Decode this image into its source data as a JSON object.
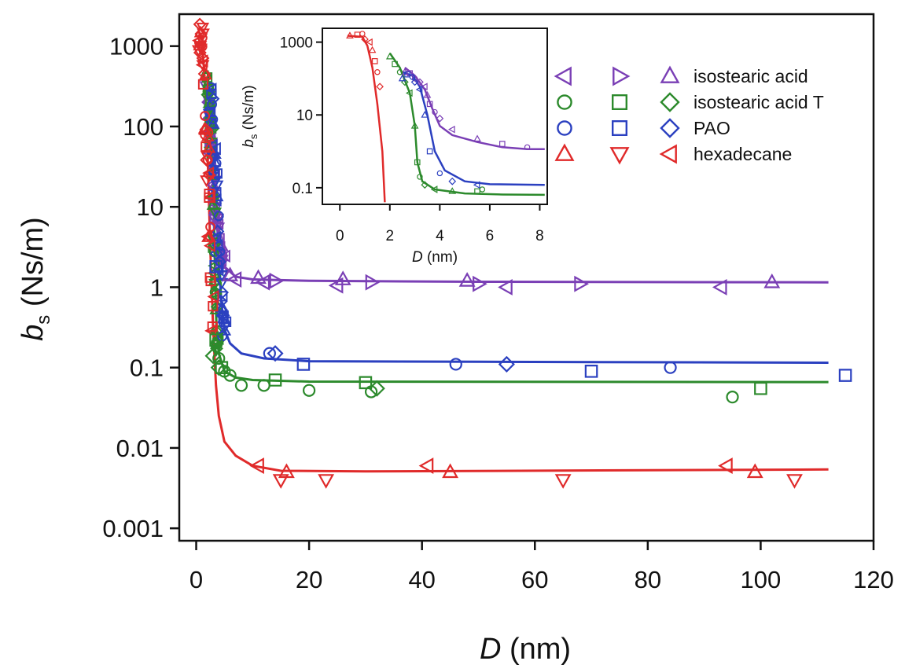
{
  "chart_data": [
    {
      "id": "main",
      "type": "scatter",
      "title": "",
      "xlabel_var": "D",
      "xlabel_unit": "(nm)",
      "ylabel_var": "b",
      "ylabel_sub": "s",
      "ylabel_unit": "(Ns/m)",
      "y_scale": "log",
      "xlim": [
        -3,
        120
      ],
      "ylim": [
        0.0007,
        2500
      ],
      "x_ticks": [
        0,
        20,
        40,
        60,
        80,
        100,
        120
      ],
      "x_tick_labels": [
        "0",
        "20",
        "40",
        "60",
        "80",
        "100",
        "120"
      ],
      "y_ticks": [
        0.001,
        0.01,
        0.1,
        1,
        10,
        100,
        1000
      ],
      "y_tick_labels": [
        "0.001",
        "0.01",
        "0.1",
        "1",
        "10",
        "100",
        "1000"
      ],
      "grid": false,
      "legend_position": "top-right",
      "series": [
        {
          "name": "isostearic acid",
          "color": "#7a3fb5",
          "markers": [
            {
              "symbol": "tri-left",
              "points": [
                [
                  7,
                  1.25
                ],
                [
                  12,
                  1.15
                ],
                [
                  25,
                  1.05
                ],
                [
                  55,
                  1.0
                ],
                [
                  93,
                  1.0
                ]
              ]
            },
            {
              "symbol": "tri-right",
              "points": [
                [
                  14,
                  1.2
                ],
                [
                  31,
                  1.15
                ],
                [
                  50,
                  1.1
                ],
                [
                  68,
                  1.1
                ]
              ]
            },
            {
              "symbol": "tri-up",
              "points": [
                [
                  6,
                  1.4
                ],
                [
                  11,
                  1.3
                ],
                [
                  26,
                  1.25
                ],
                [
                  48,
                  1.2
                ],
                [
                  102,
                  1.15
                ]
              ]
            }
          ],
          "fit": [
            [
              2.0,
              400
            ],
            [
              2.5,
              100
            ],
            [
              3.0,
              25
            ],
            [
              3.5,
              8
            ],
            [
              4.0,
              3.5
            ],
            [
              5,
              1.8
            ],
            [
              7,
              1.35
            ],
            [
              10,
              1.25
            ],
            [
              20,
              1.2
            ],
            [
              50,
              1.17
            ],
            [
              112,
              1.15
            ]
          ]
        },
        {
          "name": "isostearic acid T",
          "color": "#2c8a2c",
          "markers": [
            {
              "symbol": "circle",
              "points": [
                [
                  4,
                  0.13
                ],
                [
                  5,
                  0.09
                ],
                [
                  6,
                  0.08
                ],
                [
                  8,
                  0.06
                ],
                [
                  12,
                  0.06
                ],
                [
                  20,
                  0.052
                ],
                [
                  31,
                  0.05
                ],
                [
                  95,
                  0.043
                ]
              ]
            },
            {
              "symbol": "square",
              "points": [
                [
                  3.5,
                  0.22
                ],
                [
                  4.5,
                  0.1
                ],
                [
                  14,
                  0.07
                ],
                [
                  30,
                  0.065
                ],
                [
                  100,
                  0.055
                ]
              ]
            },
            {
              "symbol": "diamond",
              "points": [
                [
                  3,
                  0.14
                ],
                [
                  4,
                  0.1
                ],
                [
                  32,
                  0.055
                ]
              ]
            }
          ],
          "fit": [
            [
              2.0,
              500
            ],
            [
              2.5,
              150
            ],
            [
              3.0,
              20
            ],
            [
              3.3,
              2
            ],
            [
              3.6,
              0.3
            ],
            [
              4,
              0.15
            ],
            [
              5,
              0.09
            ],
            [
              7,
              0.075
            ],
            [
              10,
              0.07
            ],
            [
              20,
              0.067
            ],
            [
              112,
              0.066
            ]
          ]
        },
        {
          "name": "PAO",
          "color": "#2b40c0",
          "markers": [
            {
              "symbol": "circle",
              "points": [
                [
                  13,
                  0.15
                ],
                [
                  46,
                  0.11
                ],
                [
                  84,
                  0.1
                ]
              ]
            },
            {
              "symbol": "square",
              "points": [
                [
                  3.5,
                  1.8
                ],
                [
                  19,
                  0.11
                ],
                [
                  70,
                  0.09
                ],
                [
                  115,
                  0.08
                ]
              ]
            },
            {
              "symbol": "diamond",
              "points": [
                [
                  14,
                  0.15
                ],
                [
                  55,
                  0.11
                ]
              ]
            }
          ],
          "fit": [
            [
              2.5,
              300
            ],
            [
              3.0,
              100
            ],
            [
              3.5,
              20
            ],
            [
              4.0,
              2
            ],
            [
              4.5,
              0.6
            ],
            [
              5,
              0.3
            ],
            [
              6,
              0.2
            ],
            [
              8,
              0.15
            ],
            [
              12,
              0.13
            ],
            [
              20,
              0.12
            ],
            [
              50,
              0.118
            ],
            [
              112,
              0.115
            ]
          ]
        },
        {
          "name": "hexadecane",
          "color": "#e02a2a",
          "markers": [
            {
              "symbol": "tri-up",
              "points": [
                [
                  16,
                  0.005
                ],
                [
                  45,
                  0.005
                ],
                [
                  99,
                  0.005
                ]
              ]
            },
            {
              "symbol": "tri-down",
              "points": [
                [
                  15,
                  0.004
                ],
                [
                  23,
                  0.004
                ],
                [
                  65,
                  0.004
                ],
                [
                  106,
                  0.004
                ]
              ]
            },
            {
              "symbol": "tri-left",
              "points": [
                [
                  11,
                  0.006
                ],
                [
                  41,
                  0.006
                ],
                [
                  94,
                  0.006
                ]
              ]
            }
          ],
          "fit": [
            [
              0.5,
              1500
            ],
            [
              1.0,
              1200
            ],
            [
              1.5,
              400
            ],
            [
              2.0,
              50
            ],
            [
              2.5,
              3
            ],
            [
              3.0,
              0.3
            ],
            [
              3.5,
              0.06
            ],
            [
              4.0,
              0.025
            ],
            [
              5,
              0.012
            ],
            [
              7,
              0.008
            ],
            [
              10,
              0.006
            ],
            [
              15,
              0.0052
            ],
            [
              30,
              0.0051
            ],
            [
              112,
              0.0054
            ]
          ]
        }
      ],
      "legend_rows": [
        {
          "label": "isostearic acid",
          "color": "#7a3fb5",
          "symbols": [
            "tri-left",
            "tri-right",
            "tri-up"
          ]
        },
        {
          "label": "isostearic acid T",
          "color": "#2c8a2c",
          "symbols": [
            "circle",
            "square",
            "diamond"
          ]
        },
        {
          "label": "PAO",
          "color": "#2b40c0",
          "symbols": [
            "circle",
            "square",
            "diamond"
          ]
        },
        {
          "label": "hexadecane",
          "color": "#e02a2a",
          "symbols": [
            "tri-up",
            "tri-down",
            "tri-left"
          ]
        }
      ]
    },
    {
      "id": "inset",
      "type": "scatter",
      "title": "",
      "xlabel_var": "D",
      "xlabel_unit": "(nm)",
      "ylabel_var": "b",
      "ylabel_sub": "s",
      "ylabel_unit": "(Ns/m)",
      "y_scale": "log",
      "xlim": [
        -0.7,
        8.3
      ],
      "ylim": [
        0.035,
        2400
      ],
      "x_ticks": [
        0,
        2,
        4,
        6,
        8
      ],
      "x_tick_labels": [
        "0",
        "2",
        "4",
        "6",
        "8"
      ],
      "y_ticks": [
        0.1,
        10,
        1000
      ],
      "y_tick_labels": [
        "0.1",
        "10",
        "1000"
      ],
      "grid": false,
      "series": [
        {
          "name": "isostearic acid",
          "color": "#7a3fb5",
          "points": [
            [
              2.6,
              150
            ],
            [
              2.8,
              140
            ],
            [
              3.0,
              100
            ],
            [
              3.2,
              80
            ],
            [
              3.4,
              60
            ],
            [
              3.5,
              35
            ],
            [
              3.6,
              20
            ],
            [
              3.8,
              12
            ],
            [
              4.0,
              8
            ],
            [
              4.5,
              4
            ],
            [
              5.5,
              2.2
            ],
            [
              6.5,
              1.6
            ],
            [
              7.5,
              1.3
            ]
          ],
          "fit": [
            [
              2.6,
              200
            ],
            [
              3.0,
              120
            ],
            [
              3.4,
              50
            ],
            [
              3.7,
              15
            ],
            [
              4.0,
              5
            ],
            [
              4.5,
              2.8
            ],
            [
              5.5,
              1.8
            ],
            [
              6.5,
              1.3
            ],
            [
              7.5,
              1.15
            ],
            [
              8.2,
              1.15
            ]
          ]
        },
        {
          "name": "isostearic acid T",
          "color": "#2c8a2c",
          "points": [
            [
              2.0,
              400
            ],
            [
              2.2,
              250
            ],
            [
              2.4,
              150
            ],
            [
              2.6,
              80
            ],
            [
              2.8,
              40
            ],
            [
              3.0,
              5
            ],
            [
              3.1,
              0.5
            ],
            [
              3.2,
              0.2
            ],
            [
              3.4,
              0.12
            ],
            [
              3.8,
              0.09
            ],
            [
              4.5,
              0.08
            ],
            [
              5.5,
              0.08
            ],
            [
              5.7,
              0.09
            ]
          ],
          "fit": [
            [
              2.0,
              500
            ],
            [
              2.4,
              200
            ],
            [
              2.8,
              40
            ],
            [
              3.0,
              5
            ],
            [
              3.1,
              0.5
            ],
            [
              3.3,
              0.15
            ],
            [
              3.8,
              0.09
            ],
            [
              5,
              0.07
            ],
            [
              6.5,
              0.065
            ],
            [
              8.2,
              0.064
            ]
          ]
        },
        {
          "name": "PAO",
          "color": "#2b40c0",
          "points": [
            [
              2.5,
              100
            ],
            [
              2.7,
              130
            ],
            [
              2.9,
              110
            ],
            [
              3.0,
              80
            ],
            [
              3.2,
              50
            ],
            [
              3.4,
              10
            ],
            [
              3.6,
              1
            ],
            [
              4.0,
              0.25
            ],
            [
              4.5,
              0.15
            ],
            [
              5.5,
              0.12
            ]
          ],
          "fit": [
            [
              2.5,
              150
            ],
            [
              2.9,
              120
            ],
            [
              3.2,
              60
            ],
            [
              3.5,
              10
            ],
            [
              3.8,
              1
            ],
            [
              4.2,
              0.3
            ],
            [
              5.0,
              0.15
            ],
            [
              6,
              0.125
            ],
            [
              8.2,
              0.12
            ]
          ]
        },
        {
          "name": "hexadecane",
          "color": "#e02a2a",
          "points": [
            [
              0.4,
              1500
            ],
            [
              0.7,
              1600
            ],
            [
              0.9,
              1700
            ],
            [
              1.0,
              1200
            ],
            [
              1.2,
              1000
            ],
            [
              1.3,
              600
            ],
            [
              1.4,
              300
            ],
            [
              1.5,
              150
            ],
            [
              1.6,
              60
            ]
          ],
          "fit": [
            [
              0.3,
              1500
            ],
            [
              0.9,
              1400
            ],
            [
              1.1,
              800
            ],
            [
              1.3,
              200
            ],
            [
              1.5,
              20
            ],
            [
              1.7,
              1
            ],
            [
              1.8,
              0.04
            ]
          ]
        }
      ]
    }
  ]
}
